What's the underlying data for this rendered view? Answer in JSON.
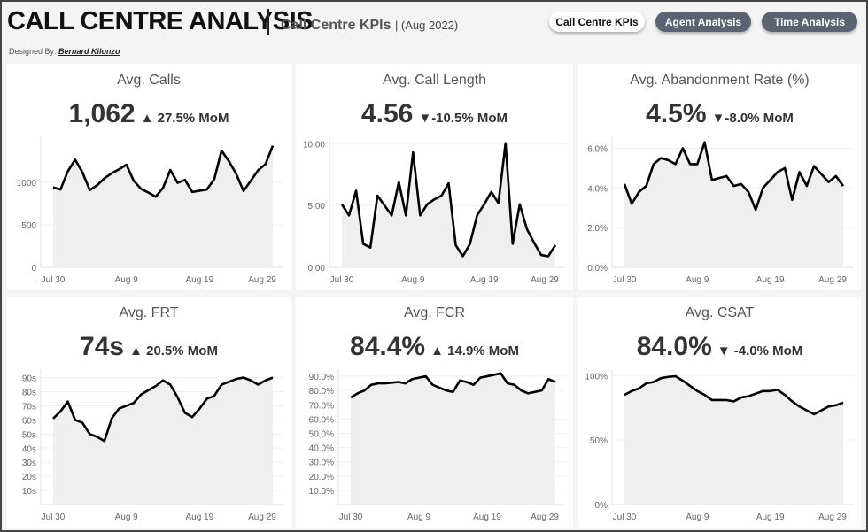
{
  "header": {
    "title": "CALL CENTRE ANALYSIS",
    "subtitle": "Call Centre KPIs",
    "period": "| (Aug 2022)",
    "designed_by_label": "Designed By:",
    "designer": "Bernard Kilonzo"
  },
  "nav": [
    {
      "label": "Call Centre KPIs",
      "active": true
    },
    {
      "label": "Agent Analysis",
      "active": false
    },
    {
      "label": "Time Analysis",
      "active": false
    }
  ],
  "colors": {
    "line": "#000000",
    "area": "#efefef",
    "active_button": "#ffffff",
    "inactive_button": "#5b6272"
  },
  "cards": [
    {
      "title": "Avg. Calls",
      "value": "1,062",
      "change": "▲ 27.5% MoM"
    },
    {
      "title": "Avg. Call Length",
      "value": "4.56",
      "change": "▼-10.5% MoM"
    },
    {
      "title": "Avg. Abandonment Rate (%)",
      "value": "4.5%",
      "change": "▼-8.0% MoM"
    },
    {
      "title": "Avg. FRT",
      "value": "74s",
      "change": "▲ 20.5% MoM"
    },
    {
      "title": "Avg. FCR",
      "value": "84.4%",
      "change": "▲ 14.9% MoM"
    },
    {
      "title": "Avg. CSAT",
      "value": "84.0%",
      "change": "▼ -4.0% MoM"
    }
  ],
  "chart_data": [
    {
      "type": "area",
      "title": "Avg. Calls",
      "x": [
        "Jul 30",
        "Jul 31",
        "Aug 1",
        "Aug 2",
        "Aug 3",
        "Aug 4",
        "Aug 5",
        "Aug 6",
        "Aug 7",
        "Aug 8",
        "Aug 9",
        "Aug 10",
        "Aug 11",
        "Aug 12",
        "Aug 13",
        "Aug 14",
        "Aug 15",
        "Aug 16",
        "Aug 17",
        "Aug 18",
        "Aug 19",
        "Aug 20",
        "Aug 21",
        "Aug 22",
        "Aug 23",
        "Aug 24",
        "Aug 25",
        "Aug 26",
        "Aug 27",
        "Aug 28",
        "Aug 29"
      ],
      "y": [
        940,
        915,
        1128,
        1266,
        1117,
        908,
        965,
        1046,
        1106,
        1152,
        1206,
        1018,
        922,
        879,
        830,
        933,
        1145,
        993,
        1028,
        886,
        901,
        915,
        1035,
        1372,
        1248,
        1099,
        897,
        1018,
        1142,
        1213,
        1429
      ],
      "ylim": [
        0,
        1540
      ],
      "yticks": [
        0,
        500,
        1000
      ],
      "ytick_labels": [
        "0",
        "500",
        "1000"
      ],
      "xtick_labels": [
        "Jul 30",
        "Aug 9",
        "Aug 19",
        "Aug 29"
      ],
      "grid": true
    },
    {
      "type": "area",
      "title": "Avg. Call Length",
      "x": [
        "Jul 30",
        "Jul 31",
        "Aug 1",
        "Aug 2",
        "Aug 3",
        "Aug 4",
        "Aug 5",
        "Aug 6",
        "Aug 7",
        "Aug 8",
        "Aug 9",
        "Aug 10",
        "Aug 11",
        "Aug 12",
        "Aug 13",
        "Aug 14",
        "Aug 15",
        "Aug 16",
        "Aug 17",
        "Aug 18",
        "Aug 19",
        "Aug 20",
        "Aug 21",
        "Aug 22",
        "Aug 23",
        "Aug 24",
        "Aug 25",
        "Aug 26",
        "Aug 27",
        "Aug 28",
        "Aug 29"
      ],
      "y": [
        5.1,
        4.2,
        6.2,
        1.9,
        1.6,
        5.8,
        5.0,
        4.2,
        6.9,
        4.2,
        9.3,
        4.2,
        5.1,
        5.5,
        5.8,
        6.8,
        1.8,
        0.9,
        1.9,
        4.2,
        5.1,
        6.1,
        5.2,
        10.05,
        1.9,
        5.1,
        3.1,
        2.0,
        1.0,
        0.9,
        1.8
      ],
      "ylim": [
        0,
        10.6
      ],
      "yticks": [
        0,
        5,
        10
      ],
      "ytick_labels": [
        "0.00",
        "5.00",
        "10.00"
      ],
      "xtick_labels": [
        "Jul 30",
        "Aug 9",
        "Aug 19",
        "Aug 29"
      ],
      "grid": true
    },
    {
      "type": "area",
      "title": "Avg. Abandonment Rate (%)",
      "x": [
        "Jul 30",
        "Jul 31",
        "Aug 1",
        "Aug 2",
        "Aug 3",
        "Aug 4",
        "Aug 5",
        "Aug 6",
        "Aug 7",
        "Aug 8",
        "Aug 9",
        "Aug 10",
        "Aug 11",
        "Aug 12",
        "Aug 13",
        "Aug 14",
        "Aug 15",
        "Aug 16",
        "Aug 17",
        "Aug 18",
        "Aug 19",
        "Aug 20",
        "Aug 21",
        "Aug 22",
        "Aug 23",
        "Aug 24",
        "Aug 25",
        "Aug 26",
        "Aug 27",
        "Aug 28",
        "Aug 29"
      ],
      "y": [
        4.2,
        3.2,
        3.8,
        4.1,
        5.2,
        5.5,
        5.4,
        5.2,
        6.0,
        5.2,
        5.2,
        6.3,
        4.4,
        4.5,
        4.6,
        4.1,
        4.2,
        3.8,
        2.9,
        4.0,
        4.4,
        4.8,
        5.0,
        3.4,
        4.8,
        4.1,
        5.1,
        4.7,
        4.3,
        4.6,
        4.1
      ],
      "ylim": [
        0,
        6.6
      ],
      "yticks": [
        0,
        2,
        4,
        6
      ],
      "ytick_labels": [
        "0.0%",
        "2.0%",
        "4.0%",
        "6.0%"
      ],
      "xtick_labels": [
        "Jul 30",
        "Aug 9",
        "Aug 19",
        "Aug 29"
      ],
      "grid": true
    },
    {
      "type": "area",
      "title": "Avg. FRT",
      "x": [
        "Jul 30",
        "Jul 31",
        "Aug 1",
        "Aug 2",
        "Aug 3",
        "Aug 4",
        "Aug 5",
        "Aug 6",
        "Aug 7",
        "Aug 8",
        "Aug 9",
        "Aug 10",
        "Aug 11",
        "Aug 12",
        "Aug 13",
        "Aug 14",
        "Aug 15",
        "Aug 16",
        "Aug 17",
        "Aug 18",
        "Aug 19",
        "Aug 20",
        "Aug 21",
        "Aug 22",
        "Aug 23",
        "Aug 24",
        "Aug 25",
        "Aug 26",
        "Aug 27",
        "Aug 28",
        "Aug 29"
      ],
      "y": [
        61,
        66,
        73,
        60,
        58,
        50,
        48,
        45,
        61,
        68,
        70,
        72,
        78,
        81,
        84,
        88,
        85,
        76,
        65,
        62,
        68,
        75,
        77,
        85,
        87,
        89,
        90,
        88,
        85,
        88,
        90
      ],
      "ylim": [
        0,
        96
      ],
      "yticks": [
        10,
        20,
        30,
        40,
        50,
        60,
        70,
        80,
        90
      ],
      "ytick_labels": [
        "10s",
        "20s",
        "30s",
        "40s",
        "50s",
        "60s",
        "70s",
        "80s",
        "90s"
      ],
      "xtick_labels": [
        "Jul 30",
        "Aug 9",
        "Aug 19",
        "Aug 29"
      ],
      "grid": true
    },
    {
      "type": "area",
      "title": "Avg. FCR",
      "x": [
        "Jul 30",
        "Jul 31",
        "Aug 1",
        "Aug 2",
        "Aug 3",
        "Aug 4",
        "Aug 5",
        "Aug 6",
        "Aug 7",
        "Aug 8",
        "Aug 9",
        "Aug 10",
        "Aug 11",
        "Aug 12",
        "Aug 13",
        "Aug 14",
        "Aug 15",
        "Aug 16",
        "Aug 17",
        "Aug 18",
        "Aug 19",
        "Aug 20",
        "Aug 21",
        "Aug 22",
        "Aug 23",
        "Aug 24",
        "Aug 25",
        "Aug 26",
        "Aug 27",
        "Aug 28",
        "Aug 29"
      ],
      "y": [
        75,
        78,
        80,
        84,
        85,
        85,
        85.5,
        86,
        85,
        88,
        89,
        90,
        84,
        82,
        80,
        79,
        87,
        86,
        84,
        89,
        90,
        91,
        92,
        85,
        84,
        80,
        78,
        79,
        80,
        88,
        86
      ],
      "ylim": [
        0,
        95
      ],
      "yticks": [
        10,
        20,
        30,
        40,
        50,
        60,
        70,
        80,
        90
      ],
      "ytick_labels": [
        "10.0%",
        "20.0%",
        "30.0%",
        "40.0%",
        "50.0%",
        "60.0%",
        "70.0%",
        "80.0%",
        "90.0%"
      ],
      "xtick_labels": [
        "Jul 30",
        "Aug 9",
        "Aug 19",
        "Aug 29"
      ],
      "grid": true
    },
    {
      "type": "area",
      "title": "Avg. CSAT",
      "x": [
        "Jul 30",
        "Jul 31",
        "Aug 1",
        "Aug 2",
        "Aug 3",
        "Aug 4",
        "Aug 5",
        "Aug 6",
        "Aug 7",
        "Aug 8",
        "Aug 9",
        "Aug 10",
        "Aug 11",
        "Aug 12",
        "Aug 13",
        "Aug 14",
        "Aug 15",
        "Aug 16",
        "Aug 17",
        "Aug 18",
        "Aug 19",
        "Aug 20",
        "Aug 21",
        "Aug 22",
        "Aug 23",
        "Aug 24",
        "Aug 25",
        "Aug 26",
        "Aug 27",
        "Aug 28",
        "Aug 29"
      ],
      "y": [
        85,
        88,
        90,
        94,
        95,
        98,
        99,
        99.5,
        96,
        92,
        88,
        85,
        81,
        81,
        81,
        80,
        83,
        84,
        86,
        88,
        88,
        89,
        85,
        80,
        76,
        73,
        70,
        73,
        76,
        77,
        79
      ],
      "ylim": [
        0,
        105
      ],
      "yticks": [
        0,
        50,
        100
      ],
      "ytick_labels": [
        "0%",
        "50%",
        "100%"
      ],
      "xtick_labels": [
        "Jul 30",
        "Aug 9",
        "Aug 19",
        "Aug 29"
      ],
      "grid": true
    }
  ]
}
